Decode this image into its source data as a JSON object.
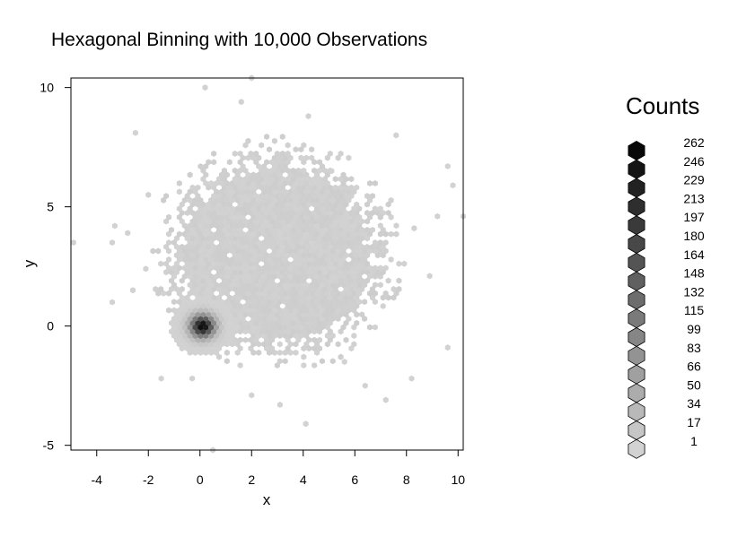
{
  "chart_data": {
    "type": "heatmap",
    "subtype": "hexbin",
    "title": "Hexagonal Binning with 10,000 Observations",
    "xlabel": "x",
    "ylabel": "y",
    "xlim": [
      -5,
      10.2
    ],
    "ylim": [
      -5.2,
      10.4
    ],
    "x_ticks": [
      "-4",
      "-2",
      "0",
      "2",
      "4",
      "6",
      "8",
      "10"
    ],
    "y_ticks": [
      "-5",
      "0",
      "5",
      "10"
    ],
    "x_tick_values": [
      -4,
      -2,
      0,
      2,
      4,
      6,
      8,
      10
    ],
    "y_tick_values": [
      -5,
      0,
      5,
      10
    ],
    "color_scale": "grayscale (light = low count, dark = high count)",
    "legend": {
      "title": "Counts",
      "position": "right",
      "levels": [
        "262",
        "246",
        "229",
        "213",
        "197",
        "180",
        "164",
        "148",
        "132",
        "115",
        "99",
        "83",
        "66",
        "50",
        "34",
        "17",
        "1"
      ]
    },
    "clusters": [
      {
        "label": "dense cluster",
        "center": [
          0.1,
          0.0
        ],
        "spread": 0.6,
        "max_count": 262
      },
      {
        "label": "diffuse cluster",
        "center": [
          3.0,
          3.0
        ],
        "spread": 2.2,
        "max_count": 17
      }
    ],
    "outliers": [
      [
        -4.9,
        3.5
      ],
      [
        -3.4,
        3.5
      ],
      [
        -3.4,
        1.0
      ],
      [
        -2.5,
        8.1
      ],
      [
        -3.3,
        4.2
      ],
      [
        -2.8,
        3.9
      ],
      [
        0.2,
        10.0
      ],
      [
        2.0,
        10.4
      ],
      [
        1.6,
        9.4
      ],
      [
        4.2,
        8.8
      ],
      [
        5.1,
        6.5
      ],
      [
        7.6,
        8.0
      ],
      [
        9.6,
        6.7
      ],
      [
        9.8,
        5.9
      ],
      [
        10.2,
        4.6
      ],
      [
        9.2,
        4.6
      ],
      [
        8.3,
        4.1
      ],
      [
        8.9,
        2.1
      ],
      [
        9.6,
        -0.9
      ],
      [
        8.2,
        -2.2
      ],
      [
        7.2,
        -3.1
      ],
      [
        6.4,
        -2.5
      ],
      [
        4.1,
        -4.1
      ],
      [
        0.5,
        -5.2
      ],
      [
        2.0,
        -2.9
      ],
      [
        3.1,
        -3.3
      ],
      [
        -1.5,
        -2.2
      ],
      [
        -0.3,
        -2.2
      ],
      [
        5.6,
        -1.5
      ],
      [
        -2.6,
        1.5
      ],
      [
        -2.1,
        2.4
      ],
      [
        -2.0,
        5.5
      ]
    ]
  }
}
